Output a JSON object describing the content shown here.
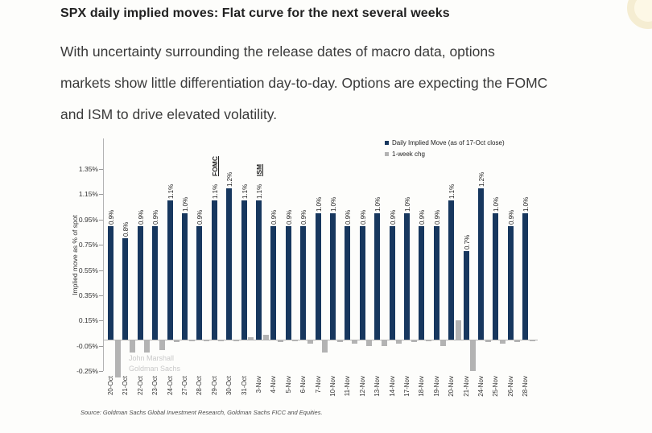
{
  "doc": {
    "title": "SPX daily implied moves: Flat curve for the next several weeks",
    "body_lines": [
      "With uncertainty surrounding the release dates of macro data, options",
      "markets show little differentiation day-to-day. Options are expecting the FOMC",
      "and ISM to drive elevated volatility."
    ]
  },
  "chart_data": {
    "type": "bar",
    "ylabel": "Implied move as % of spot",
    "ylim": [
      -0.35,
      1.45
    ],
    "yticks": [
      {
        "label": "1.35%",
        "value": 1.35
      },
      {
        "label": "1.15%",
        "value": 1.15
      },
      {
        "label": "0.95%",
        "value": 0.95
      },
      {
        "label": "0.75%",
        "value": 0.75
      },
      {
        "label": "0.55%",
        "value": 0.55
      },
      {
        "label": "0.35%",
        "value": 0.35
      },
      {
        "label": "0.15%",
        "value": 0.15
      },
      {
        "label": "-0.05%",
        "value": -0.05
      },
      {
        "label": "-0.25%",
        "value": -0.25
      }
    ],
    "categories": [
      "20-Oct",
      "21-Oct",
      "22-Oct",
      "23-Oct",
      "24-Oct",
      "27-Oct",
      "28-Oct",
      "29-Oct",
      "30-Oct",
      "31-Oct",
      "3-Nov",
      "4-Nov",
      "5-Nov",
      "6-Nov",
      "7-Nov",
      "10-Nov",
      "11-Nov",
      "12-Nov",
      "13-Nov",
      "14-Nov",
      "17-Nov",
      "18-Nov",
      "19-Nov",
      "20-Nov",
      "21-Nov",
      "24-Nov",
      "25-Nov",
      "26-Nov",
      "28-Nov"
    ],
    "series": [
      {
        "name": "Daily Implied Move (as of 17-Oct close)",
        "color": "#17375e",
        "values": [
          0.9,
          0.8,
          0.9,
          0.9,
          1.1,
          1.0,
          0.9,
          1.1,
          1.2,
          1.1,
          1.1,
          0.9,
          0.9,
          0.9,
          1.0,
          1.0,
          0.9,
          0.9,
          1.0,
          0.9,
          1.0,
          0.9,
          0.9,
          1.1,
          0.7,
          1.2,
          1.0,
          0.9,
          1.0
        ],
        "labels": [
          "0.9%",
          "0.8%",
          "0.9%",
          "0.9%",
          "1.1%",
          "1.0%",
          "0.9%",
          "1.1%",
          "1.2%",
          "1.1%",
          "1.1%",
          "0.9%",
          "0.9%",
          "0.9%",
          "1.0%",
          "1.0%",
          "0.9%",
          "0.9%",
          "1.0%",
          "0.9%",
          "1.0%",
          "0.9%",
          "0.9%",
          "1.1%",
          "0.7%",
          "1.2%",
          "1.0%",
          "0.9%",
          "1.0%"
        ]
      },
      {
        "name": "1-week chg",
        "color": "#b3b3b3",
        "values": [
          -0.3,
          -0.1,
          -0.1,
          -0.08,
          -0.02,
          -0.01,
          -0.01,
          -0.01,
          -0.01,
          0.02,
          0.04,
          -0.02,
          -0.01,
          -0.03,
          -0.1,
          -0.02,
          -0.03,
          -0.05,
          -0.05,
          -0.03,
          -0.02,
          -0.01,
          -0.05,
          0.15,
          -0.25,
          -0.02,
          -0.03,
          -0.02,
          -0.01
        ]
      }
    ],
    "annotations": [
      {
        "label": "FOMC",
        "category": "29-Oct"
      },
      {
        "label": "ISM",
        "category": "3-Nov"
      }
    ],
    "legend_position": "top-right",
    "grid": false
  },
  "watermark": {
    "line1": "John Marshall",
    "line2": "Goldman Sachs"
  },
  "source": "Source: Goldman Sachs Global Investment Research, Goldman Sachs FICC and Equities."
}
